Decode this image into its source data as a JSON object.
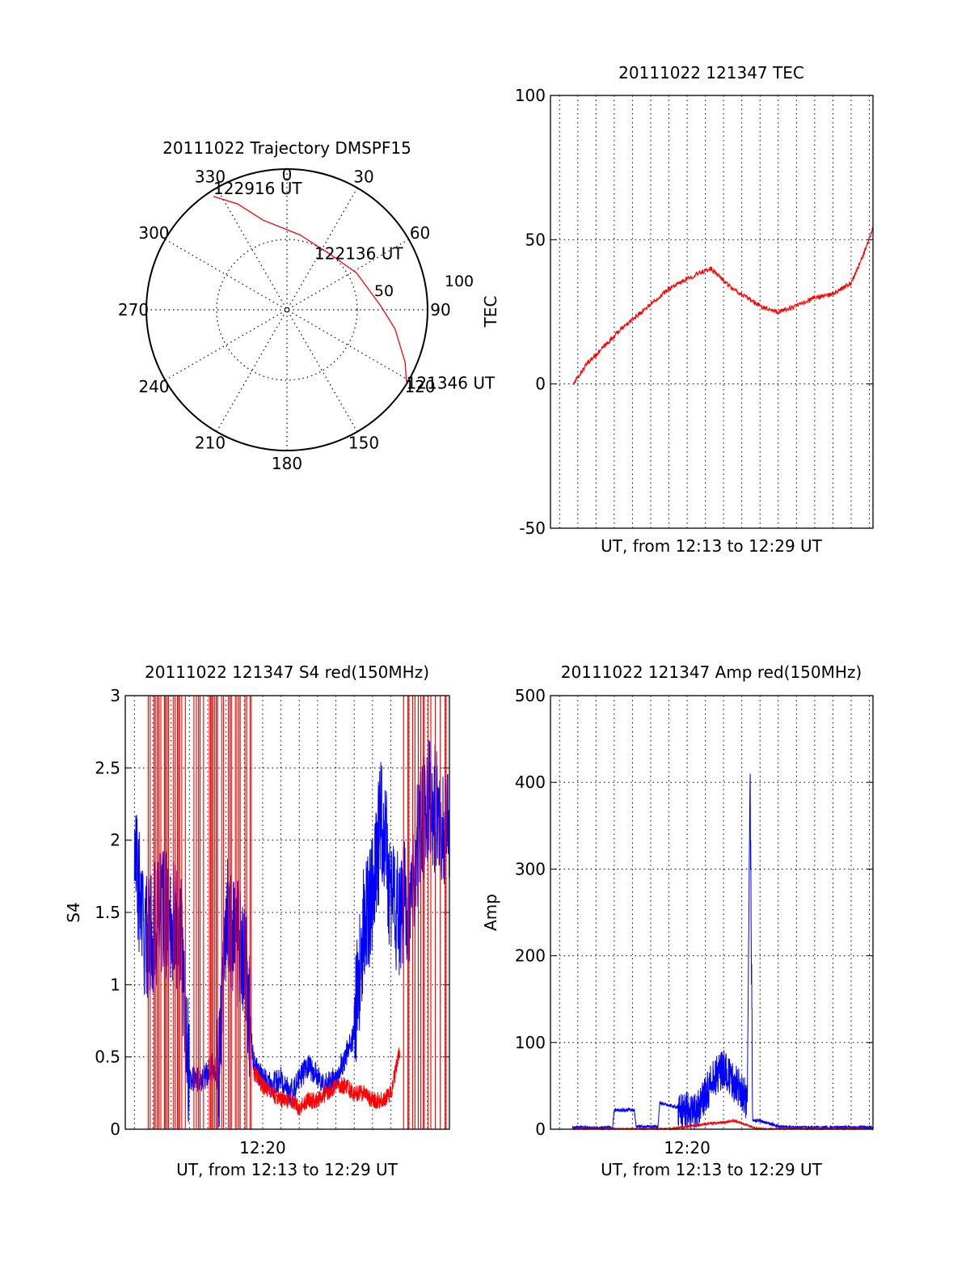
{
  "colors": {
    "red": "#ff0000",
    "blue": "#0000ff",
    "axis": "#000000",
    "grid": "#000000"
  },
  "chart_data": [
    {
      "type": "polar",
      "title": "20111022 Trajectory DMSPF15",
      "angle_ticks": [
        "0",
        "30",
        "60",
        "90",
        "120",
        "150",
        "180",
        "210",
        "240",
        "270",
        "300",
        "330"
      ],
      "radius_ticks": [
        "50",
        "100"
      ],
      "rlim": [
        0,
        100
      ],
      "grid": true,
      "series": [
        {
          "color": "red",
          "points": [
            {
              "az": 327,
              "el": 4
            },
            {
              "az": 335,
              "el": 17
            },
            {
              "az": 345,
              "el": 34
            },
            {
              "az": 10,
              "el": 46
            },
            {
              "az": 38,
              "el": 50
            },
            {
              "az": 62,
              "el": 44
            },
            {
              "az": 88,
              "el": 33
            },
            {
              "az": 100,
              "el": 22
            },
            {
              "az": 114,
              "el": 8
            },
            {
              "az": 121,
              "el": 1
            }
          ]
        }
      ],
      "annotations": [
        {
          "text": "122916 UT",
          "az": 327,
          "el": 4
        },
        {
          "text": "122136 UT",
          "az": 62,
          "el": 44
        },
        {
          "text": "121346 UT",
          "az": 121,
          "el": 1
        }
      ]
    },
    {
      "type": "line",
      "title": "20111022 121347 TEC",
      "xlabel": "UT, from 12:13 to 12:29 UT",
      "ylabel": "TEC",
      "ylim": [
        -50,
        100
      ],
      "yticks": [
        "-50",
        "0",
        "50",
        "100"
      ],
      "xlim_minutes": [
        12.5,
        30.2
      ],
      "grid": true,
      "series": [
        {
          "color": "red",
          "x": [
            13.77,
            14.5,
            15.3,
            16.2,
            17.5,
            19.0,
            20.5,
            21.3,
            22.5,
            24.0,
            25.0,
            26.0,
            27.0,
            28.0,
            29.0,
            29.5,
            30.2
          ],
          "y": [
            0,
            7,
            12,
            18,
            25,
            33,
            38,
            40,
            33,
            27,
            25,
            27,
            30,
            31,
            35,
            42,
            54
          ]
        }
      ]
    },
    {
      "type": "line",
      "title": "20111022 121347 S4 red(150MHz)",
      "xlabel": "UT, from 12:13 to 12:29 UT",
      "ylabel": "S4",
      "xtick_labels": [
        "12:20"
      ],
      "xlim_minutes": [
        12.5,
        30.2
      ],
      "ylim": [
        0,
        3
      ],
      "yticks": [
        "0",
        "0.5",
        "1",
        "1.5",
        "2",
        "2.5",
        "3"
      ],
      "grid": true,
      "series": [
        {
          "color": "blue",
          "x": [
            13.0,
            13.6,
            14.5,
            15.5,
            16.0,
            16.8,
            17.3,
            17.6,
            18.0,
            18.5,
            19.0,
            19.5,
            20.0,
            20.5,
            21.0,
            21.5,
            22.0,
            22.5,
            23.0,
            23.5,
            24.0,
            24.5,
            25.0,
            25.5,
            26.0,
            26.5,
            27.0,
            27.5,
            28.0,
            28.5,
            29.0,
            29.5,
            30.2
          ],
          "y": [
            1.9,
            1.3,
            1.5,
            1.4,
            0.35,
            0.35,
            0.45,
            0.34,
            1.5,
            1.3,
            1.2,
            0.45,
            0.35,
            0.3,
            0.35,
            0.25,
            0.35,
            0.45,
            0.35,
            0.3,
            0.35,
            0.5,
            0.65,
            1.4,
            1.6,
            2.2,
            1.6,
            1.5,
            1.6,
            2.0,
            2.3,
            2.2,
            2.1
          ]
        },
        {
          "color": "red",
          "x": [
            19.5,
            20.0,
            20.5,
            21.0,
            21.5,
            22.0,
            22.5,
            23.0,
            23.5,
            24.0,
            24.5,
            25.0,
            25.5,
            26.0,
            26.5,
            27.0,
            27.5
          ],
          "y": [
            0.4,
            0.3,
            0.25,
            0.2,
            0.2,
            0.15,
            0.2,
            0.2,
            0.25,
            0.3,
            0.3,
            0.25,
            0.25,
            0.2,
            0.2,
            0.25,
            0.55
          ]
        }
      ]
    },
    {
      "type": "line",
      "title": "20111022 121347 Amp red(150MHz)",
      "xlabel": "UT, from 12:13 to 12:29 UT",
      "ylabel": "Amp",
      "xtick_labels": [
        "12:20"
      ],
      "xlim_minutes": [
        12.5,
        30.2
      ],
      "ylim": [
        0,
        500
      ],
      "yticks": [
        "0",
        "100",
        "200",
        "300",
        "400",
        "500"
      ],
      "grid": true,
      "series": [
        {
          "color": "blue",
          "x": [
            13.7,
            15.9,
            16.0,
            17.1,
            17.2,
            18.4,
            18.5,
            19.5,
            20.5,
            21.0,
            21.5,
            22.0,
            22.5,
            23.0,
            23.3,
            23.45,
            23.6,
            24.0,
            25.0,
            26.0,
            27.0,
            28.0,
            30.2
          ],
          "y": [
            2,
            2,
            22,
            22,
            3,
            3,
            30,
            25,
            20,
            40,
            60,
            70,
            55,
            45,
            30,
            405,
            10,
            10,
            3,
            2,
            2,
            2,
            2
          ]
        },
        {
          "color": "red",
          "x": [
            13.7,
            19.0,
            20.0,
            21.0,
            22.0,
            22.5,
            23.0,
            23.5,
            24.0,
            30.2
          ],
          "y": [
            0,
            0,
            3,
            6,
            8,
            10,
            7,
            3,
            0,
            0
          ]
        }
      ]
    }
  ]
}
